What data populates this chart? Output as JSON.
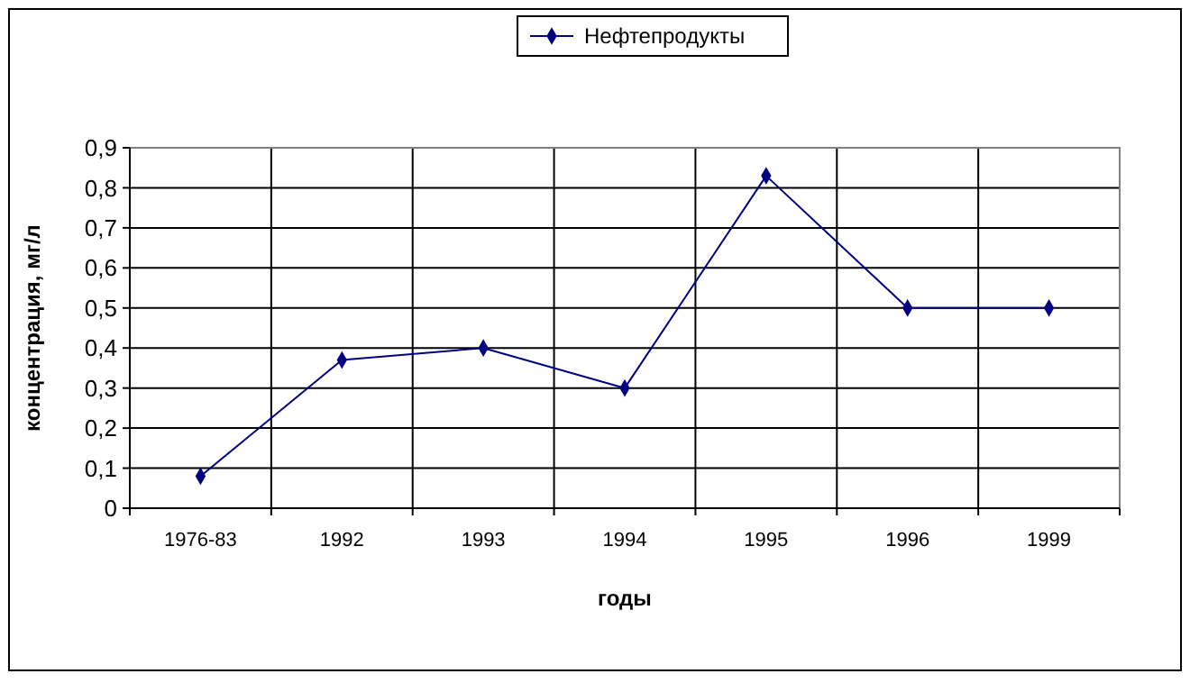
{
  "chart_data": {
    "type": "line",
    "xlabel": "годы",
    "ylabel": "концентрация, мг/л",
    "categories": [
      "1976-83",
      "1992",
      "1993",
      "1994",
      "1995",
      "1996",
      "1999"
    ],
    "series": [
      {
        "name": "Нефтепродукты",
        "color": "#000080",
        "values": [
          0.08,
          0.37,
          0.4,
          0.3,
          0.83,
          0.5,
          0.5
        ]
      }
    ],
    "ylim": [
      0,
      0.9
    ],
    "yticks": [
      0,
      {
        "value": 0.1,
        "label": "0,1"
      },
      {
        "value": 0.2,
        "label": "0,2"
      },
      {
        "value": 0.3,
        "label": "0,3"
      },
      {
        "value": 0.4,
        "label": "0,4"
      },
      {
        "value": 0.5,
        "label": "0,5"
      },
      {
        "value": 0.6,
        "label": "0,6"
      },
      {
        "value": 0.7,
        "label": "0,7"
      },
      {
        "value": 0.8,
        "label": "0,8"
      },
      {
        "value": 0.9,
        "label": "0,9"
      }
    ],
    "grid": true,
    "legend": "top",
    "marker": "diamond",
    "line_style": "solid"
  }
}
